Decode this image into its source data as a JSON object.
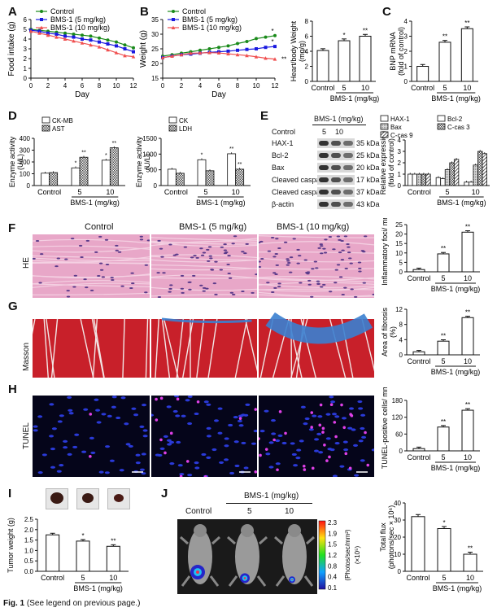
{
  "panel_letters": [
    "A",
    "B",
    "C",
    "D",
    "E",
    "F",
    "G",
    "H",
    "I",
    "J"
  ],
  "caption": {
    "fig": "Fig. 1",
    "text": "(See legend on previous page.)"
  },
  "legend_groups": [
    "Control",
    "BMS-1 (5 mg/kg)",
    "BMS-1 (10 mg/kg)"
  ],
  "group_axis": {
    "control": "Control",
    "d5": "5",
    "d10": "10",
    "drug": "BMS-1 (mg/kg)"
  },
  "sig": {
    "one": "*",
    "two": "**"
  },
  "colors": {
    "control": "#1a8a1a",
    "d5": "#1a1ae0",
    "d10": "#f05050",
    "he": "#e8a7c8",
    "masson_red": "#c8202a",
    "masson_blue": "#3a7fd0",
    "tunel": "#05051a"
  },
  "chart_data": [
    {
      "id": "A",
      "type": "line",
      "x": [
        0,
        1,
        2,
        3,
        4,
        5,
        6,
        7,
        8,
        9,
        10,
        11,
        12
      ],
      "xlabel": "Day",
      "ylabel": "Food intake (g)",
      "ylim": [
        0,
        6
      ],
      "yticks": [
        0,
        1,
        2,
        3,
        4,
        5,
        6
      ],
      "xticks": [
        0,
        2,
        4,
        6,
        8,
        10,
        12
      ],
      "series": [
        {
          "name": "Control",
          "values": [
            5.0,
            4.9,
            4.8,
            4.7,
            4.6,
            4.5,
            4.4,
            4.3,
            4.1,
            3.9,
            3.7,
            3.4,
            3.1
          ]
        },
        {
          "name": "BMS-1 (5 mg/kg)",
          "values": [
            4.9,
            4.8,
            4.6,
            4.5,
            4.3,
            4.2,
            4.0,
            3.9,
            3.7,
            3.5,
            3.3,
            3.0,
            2.7
          ]
        },
        {
          "name": "BMS-1 (10 mg/kg)",
          "values": [
            4.8,
            4.6,
            4.4,
            4.2,
            4.0,
            3.8,
            3.6,
            3.4,
            3.2,
            2.9,
            2.6,
            2.3,
            2.2
          ]
        }
      ]
    },
    {
      "id": "B",
      "type": "line",
      "x": [
        0,
        1,
        2,
        3,
        4,
        5,
        6,
        7,
        8,
        9,
        10,
        11,
        12
      ],
      "xlabel": "Day",
      "ylabel": "Weight (g)",
      "ylim": [
        15,
        35
      ],
      "yticks": [
        15,
        20,
        25,
        30,
        35
      ],
      "xticks": [
        0,
        2,
        4,
        6,
        8,
        10,
        12
      ],
      "series": [
        {
          "name": "Control",
          "values": [
            22.5,
            23.0,
            23.5,
            24.0,
            24.5,
            25.0,
            25.5,
            26.0,
            26.8,
            27.5,
            28.5,
            29.0,
            29.5
          ]
        },
        {
          "name": "BMS-1 (5 mg/kg)",
          "values": [
            22.0,
            22.5,
            23.0,
            23.2,
            23.5,
            23.8,
            24.0,
            24.2,
            24.5,
            24.8,
            25.0,
            25.5,
            25.8
          ]
        },
        {
          "name": "BMS-1 (10 mg/kg)",
          "values": [
            22.0,
            22.5,
            23.0,
            23.5,
            23.6,
            23.7,
            23.6,
            23.3,
            23.0,
            22.7,
            22.3,
            21.8,
            21.5
          ]
        }
      ],
      "annotations": [
        "*",
        "*",
        "**"
      ]
    },
    {
      "id": "B2",
      "type": "bar",
      "categories": [
        "Control",
        "5",
        "10"
      ],
      "values": [
        4.1,
        5.4,
        6.0
      ],
      "ylabel": "Heart/body Weight (mg/g)",
      "xlabel": "BMS-1 (mg/kg)",
      "ylim": [
        0,
        8
      ],
      "yticks": [
        0,
        2,
        4,
        6,
        8
      ],
      "sig": [
        "",
        "*",
        "**"
      ]
    },
    {
      "id": "C",
      "type": "bar",
      "categories": [
        "Control",
        "5",
        "10"
      ],
      "values": [
        1.0,
        2.6,
        3.5
      ],
      "ylabel": "BNP mRNA (fold of control)",
      "xlabel": "BMS-1 (mg/kg)",
      "ylim": [
        0,
        4
      ],
      "yticks": [
        0,
        1,
        2,
        3,
        4
      ],
      "sig": [
        "",
        "**",
        "**"
      ]
    },
    {
      "id": "D1",
      "type": "bar",
      "categories": [
        "Control",
        "5",
        "10"
      ],
      "ylabel": "Enzyme activity (U/L)",
      "xlabel": "BMS-1 (mg/kg)",
      "ylim": [
        0,
        400
      ],
      "yticks": [
        0,
        100,
        200,
        300,
        400
      ],
      "series": [
        {
          "name": "CK-MB",
          "values": [
            105,
            150,
            215
          ]
        },
        {
          "name": "AST",
          "values": [
            110,
            240,
            320
          ]
        }
      ],
      "sig": [
        [
          "",
          "*",
          "*"
        ],
        [
          "",
          "**",
          "**"
        ]
      ]
    },
    {
      "id": "D2",
      "type": "bar",
      "categories": [
        "Control",
        "5",
        "10"
      ],
      "ylabel": "Enzyme activity (U/L)",
      "xlabel": "BMS-1 (mg/kg)",
      "ylim": [
        0,
        1500
      ],
      "yticks": [
        0,
        500,
        1000,
        1500
      ],
      "series": [
        {
          "name": "CK",
          "values": [
            520,
            820,
            1010
          ]
        },
        {
          "name": "LDH",
          "values": [
            390,
            470,
            520
          ]
        }
      ],
      "sig": [
        [
          "",
          "*",
          "**"
        ],
        [
          "",
          "",
          "**"
        ]
      ]
    },
    {
      "id": "E2",
      "type": "bar",
      "categories": [
        "Control",
        "5",
        "10"
      ],
      "ylabel": "Relative expression (fold of control)",
      "xlabel": "BMS-1 (mg/kg)",
      "ylim": [
        0,
        4
      ],
      "yticks": [
        0,
        1,
        2,
        3,
        4
      ],
      "series": [
        {
          "name": "HAX-1",
          "values": [
            1.0,
            0.7,
            0.3
          ]
        },
        {
          "name": "Bcl-2",
          "values": [
            1.0,
            0.6,
            0.3
          ]
        },
        {
          "name": "Bax",
          "values": [
            1.0,
            1.4,
            1.8
          ]
        },
        {
          "name": "C-cas 3",
          "values": [
            1.0,
            2.0,
            3.0
          ]
        },
        {
          "name": "C-cas 9",
          "values": [
            1.0,
            2.3,
            2.8
          ]
        }
      ]
    },
    {
      "id": "F2",
      "type": "bar",
      "categories": [
        "Control",
        "5",
        "10"
      ],
      "values": [
        1.2,
        9.5,
        21
      ],
      "ylabel": "Inflammatory foci/ mm²",
      "xlabel": "BMS-1 (mg/kg)",
      "ylim": [
        0,
        25
      ],
      "yticks": [
        0,
        5,
        10,
        15,
        20,
        25
      ],
      "sig": [
        "",
        "**",
        "**"
      ]
    },
    {
      "id": "G2",
      "type": "bar",
      "categories": [
        "Control",
        "5",
        "10"
      ],
      "values": [
        0.8,
        3.6,
        9.8
      ],
      "ylabel": "Area of fibrosis (%)",
      "xlabel": "BMS-1 (mg/kg)",
      "ylim": [
        0,
        12
      ],
      "yticks": [
        0,
        4,
        8,
        12
      ],
      "sig": [
        "",
        "**",
        "**"
      ]
    },
    {
      "id": "H2",
      "type": "bar",
      "categories": [
        "Control",
        "5",
        "10"
      ],
      "values": [
        8,
        85,
        145
      ],
      "ylabel": "TUNEL-positive cells/ mm²",
      "xlabel": "BMS-1 (mg/kg)",
      "ylim": [
        0,
        180
      ],
      "yticks": [
        0,
        60,
        120,
        180
      ],
      "sig": [
        "",
        "**",
        "**"
      ]
    },
    {
      "id": "I",
      "type": "bar",
      "categories": [
        "Control",
        "5",
        "10"
      ],
      "values": [
        1.75,
        1.45,
        1.2
      ],
      "ylabel": "Tumor weight (g)",
      "xlabel": "BMS-1 (mg/kg)",
      "ylim": [
        0.0,
        2.5
      ],
      "yticks": [
        "0.0",
        "0.5",
        "1.0",
        "1.5",
        "2.0",
        "2.5"
      ],
      "sig": [
        "",
        "*",
        "**"
      ]
    },
    {
      "id": "J2",
      "type": "bar",
      "categories": [
        "Control",
        "5",
        "10"
      ],
      "values": [
        32,
        25,
        10
      ],
      "ylabel": "Total flux (photons/sec × 10⁶)",
      "xlabel": "BMS-1 (mg/kg)",
      "ylim": [
        0,
        40
      ],
      "yticks": [
        0,
        10,
        20,
        30,
        40
      ],
      "sig": [
        "",
        "*",
        "**"
      ]
    }
  ],
  "western": {
    "header": "BMS-1 (mg/kg)",
    "lanes": [
      "Control",
      "5",
      "10"
    ],
    "bands": [
      {
        "name": "HAX-1",
        "kda": "35 kDa"
      },
      {
        "name": "Bcl-2",
        "kda": "25 kDa"
      },
      {
        "name": "Bax",
        "kda": "20 kDa"
      },
      {
        "name": "Cleaved caspase 3",
        "kda": "17 kDa"
      },
      {
        "name": "Cleaved caspase 9",
        "kda": "37 kDa"
      },
      {
        "name": "β-actin",
        "kda": "43 kDa"
      }
    ]
  },
  "tissue": {
    "columns": [
      "Control",
      "BMS-1 (5 mg/kg)",
      "BMS-1 (10 mg/kg)"
    ],
    "rows": [
      "HE",
      "Masson",
      "TUNEL"
    ]
  },
  "imaging": {
    "title": "Control",
    "drug": "BMS-1 (mg/kg)",
    "doses": [
      "5",
      "10"
    ],
    "scale_ticks": [
      "2.3",
      "1.9",
      "1.5",
      "1.2",
      "0.8",
      "0.4",
      "0.1"
    ],
    "scale_unit": "(Photos/sec/mm²)",
    "scale_exp": "(×10⁵)"
  }
}
